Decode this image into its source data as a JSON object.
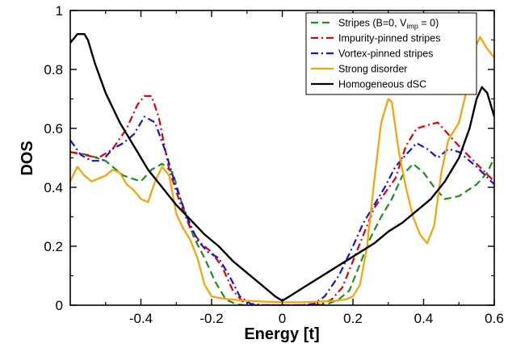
{
  "chart_data": {
    "type": "line",
    "xlabel": "Energy [t]",
    "ylabel": "DOS",
    "xlim": [
      -0.6,
      0.6
    ],
    "ylim": [
      0,
      1
    ],
    "x_ticks": [
      -0.4,
      -0.2,
      0,
      0.2,
      0.4,
      0.6
    ],
    "y_ticks": [
      0,
      0.2,
      0.4,
      0.6,
      0.8,
      1
    ],
    "x_tick_labels": [
      "-0.4",
      "-0.2",
      "0",
      "0.2",
      "0.4",
      "0.6"
    ],
    "y_tick_labels": [
      "0",
      "0.2",
      "0.4",
      "0.6",
      "0.8",
      "1"
    ],
    "grid": false,
    "legend_position": "top-right",
    "series": [
      {
        "name": "Stripes (B=0, V_imp = 0)",
        "legend_parts": [
          "Stripes (B=0, V",
          "imp",
          " = 0)"
        ],
        "color": "#1e8c1e",
        "dash": "dash",
        "points": [
          [
            -0.6,
            0.52
          ],
          [
            -0.55,
            0.51
          ],
          [
            -0.5,
            0.49
          ],
          [
            -0.45,
            0.44
          ],
          [
            -0.4,
            0.42
          ],
          [
            -0.37,
            0.46
          ],
          [
            -0.34,
            0.48
          ],
          [
            -0.31,
            0.45
          ],
          [
            -0.28,
            0.33
          ],
          [
            -0.25,
            0.23
          ],
          [
            -0.22,
            0.16
          ],
          [
            -0.19,
            0.08
          ],
          [
            -0.16,
            0.02
          ],
          [
            -0.13,
            0.003
          ],
          [
            -0.1,
            0.0
          ],
          [
            0,
            0.0
          ],
          [
            0.1,
            0.0
          ],
          [
            0.13,
            0.005
          ],
          [
            0.16,
            0.02
          ],
          [
            0.19,
            0.05
          ],
          [
            0.22,
            0.14
          ],
          [
            0.25,
            0.23
          ],
          [
            0.28,
            0.3
          ],
          [
            0.31,
            0.36
          ],
          [
            0.34,
            0.44
          ],
          [
            0.37,
            0.48
          ],
          [
            0.4,
            0.45
          ],
          [
            0.43,
            0.4
          ],
          [
            0.46,
            0.36
          ],
          [
            0.5,
            0.37
          ],
          [
            0.55,
            0.41
          ],
          [
            0.58,
            0.45
          ],
          [
            0.6,
            0.5
          ]
        ]
      },
      {
        "name": "Impurity-pinned stripes",
        "color": "#e00000",
        "dash": "dashdot",
        "points": [
          [
            -0.6,
            0.52
          ],
          [
            -0.56,
            0.51
          ],
          [
            -0.52,
            0.5
          ],
          [
            -0.48,
            0.53
          ],
          [
            -0.44,
            0.6
          ],
          [
            -0.41,
            0.68
          ],
          [
            -0.39,
            0.71
          ],
          [
            -0.37,
            0.71
          ],
          [
            -0.35,
            0.64
          ],
          [
            -0.32,
            0.46
          ],
          [
            -0.29,
            0.35
          ],
          [
            -0.26,
            0.26
          ],
          [
            -0.23,
            0.21
          ],
          [
            -0.2,
            0.18
          ],
          [
            -0.17,
            0.13
          ],
          [
            -0.14,
            0.05
          ],
          [
            -0.11,
            0.01
          ],
          [
            -0.08,
            0.0
          ],
          [
            0,
            0.0
          ],
          [
            0.08,
            0.0
          ],
          [
            0.11,
            0.003
          ],
          [
            0.14,
            0.02
          ],
          [
            0.17,
            0.06
          ],
          [
            0.2,
            0.15
          ],
          [
            0.23,
            0.24
          ],
          [
            0.26,
            0.33
          ],
          [
            0.29,
            0.38
          ],
          [
            0.32,
            0.43
          ],
          [
            0.35,
            0.54
          ],
          [
            0.38,
            0.6
          ],
          [
            0.41,
            0.61
          ],
          [
            0.44,
            0.62
          ],
          [
            0.47,
            0.58
          ],
          [
            0.5,
            0.54
          ],
          [
            0.55,
            0.48
          ],
          [
            0.6,
            0.42
          ]
        ]
      },
      {
        "name": "Vortex-pinned stripes",
        "color": "#1414d6",
        "dash": "dashdot",
        "points": [
          [
            -0.6,
            0.56
          ],
          [
            -0.57,
            0.51
          ],
          [
            -0.54,
            0.49
          ],
          [
            -0.51,
            0.49
          ],
          [
            -0.48,
            0.53
          ],
          [
            -0.45,
            0.55
          ],
          [
            -0.42,
            0.58
          ],
          [
            -0.39,
            0.64
          ],
          [
            -0.36,
            0.62
          ],
          [
            -0.33,
            0.52
          ],
          [
            -0.3,
            0.4
          ],
          [
            -0.27,
            0.3
          ],
          [
            -0.24,
            0.22
          ],
          [
            -0.21,
            0.18
          ],
          [
            -0.18,
            0.16
          ],
          [
            -0.15,
            0.1
          ],
          [
            -0.12,
            0.03
          ],
          [
            -0.09,
            0.005
          ],
          [
            -0.05,
            0.0
          ],
          [
            0,
            0.0
          ],
          [
            0.05,
            0.0
          ],
          [
            0.09,
            0.005
          ],
          [
            0.12,
            0.03
          ],
          [
            0.16,
            0.1
          ],
          [
            0.2,
            0.2
          ],
          [
            0.23,
            0.28
          ],
          [
            0.26,
            0.34
          ],
          [
            0.29,
            0.4
          ],
          [
            0.32,
            0.47
          ],
          [
            0.35,
            0.51
          ],
          [
            0.38,
            0.55
          ],
          [
            0.41,
            0.53
          ],
          [
            0.44,
            0.5
          ],
          [
            0.47,
            0.53
          ],
          [
            0.5,
            0.52
          ],
          [
            0.55,
            0.47
          ],
          [
            0.6,
            0.41
          ]
        ]
      },
      {
        "name": "Strong disorder",
        "color": "#f5a300",
        "dash": "solid",
        "points": [
          [
            -0.6,
            0.42
          ],
          [
            -0.58,
            0.47
          ],
          [
            -0.56,
            0.44
          ],
          [
            -0.54,
            0.42
          ],
          [
            -0.52,
            0.43
          ],
          [
            -0.5,
            0.44
          ],
          [
            -0.48,
            0.46
          ],
          [
            -0.46,
            0.45
          ],
          [
            -0.44,
            0.41
          ],
          [
            -0.42,
            0.39
          ],
          [
            -0.4,
            0.36
          ],
          [
            -0.38,
            0.35
          ],
          [
            -0.36,
            0.42
          ],
          [
            -0.34,
            0.47
          ],
          [
            -0.32,
            0.44
          ],
          [
            -0.3,
            0.31
          ],
          [
            -0.28,
            0.26
          ],
          [
            -0.26,
            0.22
          ],
          [
            -0.24,
            0.16
          ],
          [
            -0.22,
            0.07
          ],
          [
            -0.2,
            0.03
          ],
          [
            -0.18,
            0.025
          ],
          [
            -0.15,
            0.02
          ],
          [
            -0.1,
            0.015
          ],
          [
            -0.05,
            0.012
          ],
          [
            0,
            0.01
          ],
          [
            0.05,
            0.01
          ],
          [
            0.1,
            0.012
          ],
          [
            0.15,
            0.015
          ],
          [
            0.18,
            0.02
          ],
          [
            0.2,
            0.03
          ],
          [
            0.22,
            0.07
          ],
          [
            0.24,
            0.2
          ],
          [
            0.26,
            0.42
          ],
          [
            0.28,
            0.62
          ],
          [
            0.3,
            0.7
          ],
          [
            0.31,
            0.69
          ],
          [
            0.33,
            0.52
          ],
          [
            0.35,
            0.4
          ],
          [
            0.37,
            0.3
          ],
          [
            0.39,
            0.24
          ],
          [
            0.41,
            0.21
          ],
          [
            0.43,
            0.27
          ],
          [
            0.45,
            0.45
          ],
          [
            0.47,
            0.56
          ],
          [
            0.5,
            0.62
          ],
          [
            0.52,
            0.72
          ],
          [
            0.54,
            0.86
          ],
          [
            0.56,
            0.91
          ],
          [
            0.58,
            0.87
          ],
          [
            0.6,
            0.84
          ]
        ]
      },
      {
        "name": "Homogeneous dSC",
        "color": "#000000",
        "dash": "solid",
        "points": [
          [
            -0.6,
            0.89
          ],
          [
            -0.58,
            0.92
          ],
          [
            -0.56,
            0.92
          ],
          [
            -0.55,
            0.9
          ],
          [
            -0.53,
            0.82
          ],
          [
            -0.5,
            0.72
          ],
          [
            -0.46,
            0.62
          ],
          [
            -0.42,
            0.54
          ],
          [
            -0.38,
            0.46
          ],
          [
            -0.34,
            0.4
          ],
          [
            -0.3,
            0.34
          ],
          [
            -0.26,
            0.29
          ],
          [
            -0.22,
            0.24
          ],
          [
            -0.18,
            0.2
          ],
          [
            -0.14,
            0.15
          ],
          [
            -0.1,
            0.11
          ],
          [
            -0.06,
            0.07
          ],
          [
            -0.02,
            0.03
          ],
          [
            0,
            0.015
          ],
          [
            0.02,
            0.03
          ],
          [
            0.06,
            0.06
          ],
          [
            0.1,
            0.09
          ],
          [
            0.14,
            0.12
          ],
          [
            0.18,
            0.15
          ],
          [
            0.22,
            0.18
          ],
          [
            0.26,
            0.21
          ],
          [
            0.3,
            0.25
          ],
          [
            0.34,
            0.28
          ],
          [
            0.38,
            0.32
          ],
          [
            0.42,
            0.36
          ],
          [
            0.46,
            0.42
          ],
          [
            0.5,
            0.5
          ],
          [
            0.53,
            0.6
          ],
          [
            0.55,
            0.7
          ],
          [
            0.565,
            0.74
          ],
          [
            0.58,
            0.72
          ],
          [
            0.6,
            0.64
          ]
        ]
      }
    ]
  }
}
